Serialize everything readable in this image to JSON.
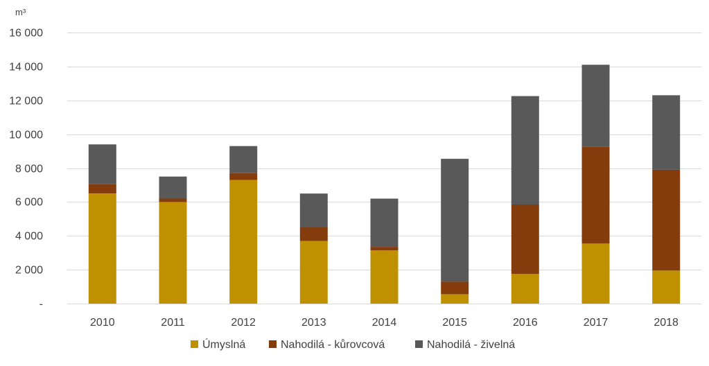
{
  "chart_data": {
    "type": "bar",
    "stacked": true,
    "unit_label": "m³",
    "categories": [
      "2010",
      "2011",
      "2012",
      "2013",
      "2014",
      "2015",
      "2016",
      "2017",
      "2018"
    ],
    "series": [
      {
        "name": "Úmyslná",
        "color": "#BF9000",
        "values": [
          6500,
          6000,
          7300,
          3700,
          3150,
          550,
          1750,
          3550,
          1950
        ]
      },
      {
        "name": "Nahodilá - kůrovcová",
        "color": "#843C0C",
        "values": [
          550,
          200,
          400,
          800,
          200,
          750,
          4100,
          5700,
          5950
        ]
      },
      {
        "name": "Nahodilá - živelná",
        "color": "#595959",
        "values": [
          2350,
          1300,
          1600,
          2000,
          2850,
          7250,
          6400,
          4850,
          4400
        ]
      }
    ],
    "ylim": [
      0,
      16000
    ],
    "yticks": [
      0,
      2000,
      4000,
      6000,
      8000,
      10000,
      12000,
      14000,
      16000
    ],
    "ytick_labels": [
      "-",
      "2 000",
      "4 000",
      "6 000",
      "8 000",
      "10 000",
      "12 000",
      "14 000",
      "16 000"
    ],
    "grid": true,
    "legend_position": "bottom"
  }
}
